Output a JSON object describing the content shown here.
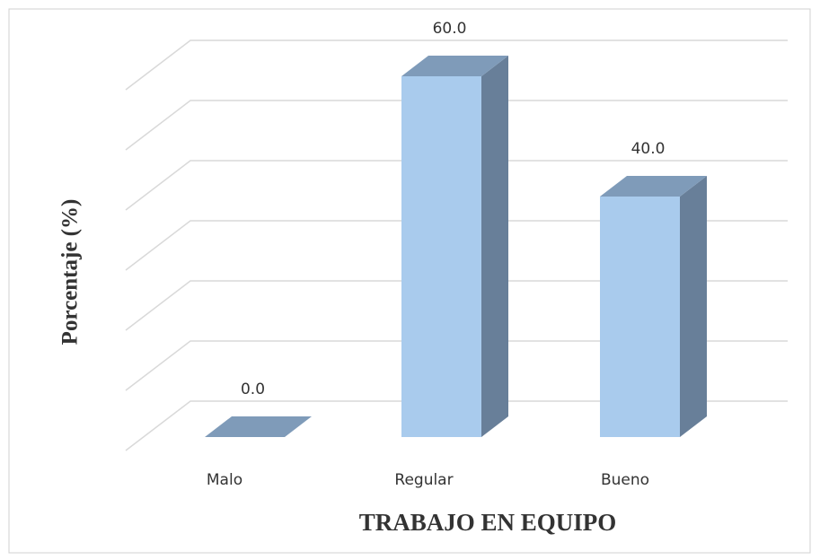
{
  "chart_data": {
    "type": "bar3d",
    "categories": [
      "Malo",
      "Regular",
      "Bueno"
    ],
    "values": [
      0,
      60,
      40
    ],
    "value_labels": [
      "0.0",
      "60.0",
      "40.0"
    ],
    "ylim": [
      0,
      60
    ],
    "yticks": [
      0,
      10,
      20,
      30,
      40,
      50,
      60
    ],
    "grid": true,
    "x_label": "TRABAJO EN EQUIPO",
    "y_label": "Porcentaje (%)",
    "color": "#a9cbed"
  }
}
